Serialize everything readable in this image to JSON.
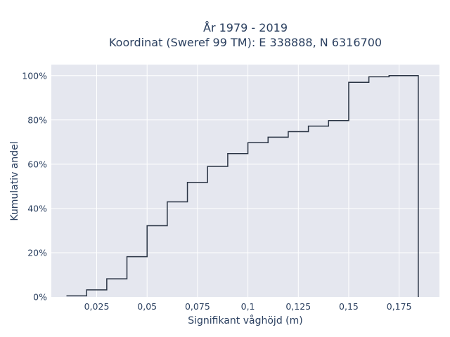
{
  "chart_data": {
    "type": "line",
    "step": "histogram-cumulative",
    "title": "År 1979 - 2019",
    "subtitle": "Koordinat (Sweref 99 TM): E 338888, N 6316700",
    "xlabel": "Signifikant våghöjd (m)",
    "ylabel": "Kumulativ andel",
    "xlim": [
      0.0025,
      0.195
    ],
    "ylim": [
      0,
      1.05
    ],
    "x_ticks": [
      0.025,
      0.05,
      0.075,
      0.1,
      0.125,
      0.15,
      0.175
    ],
    "x_tick_labels": [
      "0,025",
      "0,05",
      "0,075",
      "0,1",
      "0,125",
      "0,15",
      "0,175"
    ],
    "y_ticks": [
      0,
      0.2,
      0.4,
      0.6,
      0.8,
      1.0
    ],
    "y_tick_labels": [
      "0%",
      "20%",
      "40%",
      "60%",
      "80%",
      "100%"
    ],
    "grid": true,
    "line_color": "#2a3444",
    "plot_background": "#e5e7ef",
    "bins": [
      {
        "x0": 0.01,
        "x1": 0.02,
        "y": 0.005
      },
      {
        "x0": 0.02,
        "x1": 0.03,
        "y": 0.032
      },
      {
        "x0": 0.03,
        "x1": 0.04,
        "y": 0.082
      },
      {
        "x0": 0.04,
        "x1": 0.05,
        "y": 0.182
      },
      {
        "x0": 0.05,
        "x1": 0.06,
        "y": 0.322
      },
      {
        "x0": 0.06,
        "x1": 0.07,
        "y": 0.43
      },
      {
        "x0": 0.07,
        "x1": 0.08,
        "y": 0.518
      },
      {
        "x0": 0.08,
        "x1": 0.09,
        "y": 0.59
      },
      {
        "x0": 0.09,
        "x1": 0.1,
        "y": 0.648
      },
      {
        "x0": 0.1,
        "x1": 0.11,
        "y": 0.697
      },
      {
        "x0": 0.11,
        "x1": 0.12,
        "y": 0.722
      },
      {
        "x0": 0.12,
        "x1": 0.13,
        "y": 0.747
      },
      {
        "x0": 0.13,
        "x1": 0.14,
        "y": 0.772
      },
      {
        "x0": 0.14,
        "x1": 0.15,
        "y": 0.797
      },
      {
        "x0": 0.15,
        "x1": 0.16,
        "y": 0.97
      },
      {
        "x0": 0.16,
        "x1": 0.17,
        "y": 0.995
      },
      {
        "x0": 0.17,
        "x1": 0.18,
        "y": 1.0
      }
    ],
    "end_x": 0.1845
  }
}
